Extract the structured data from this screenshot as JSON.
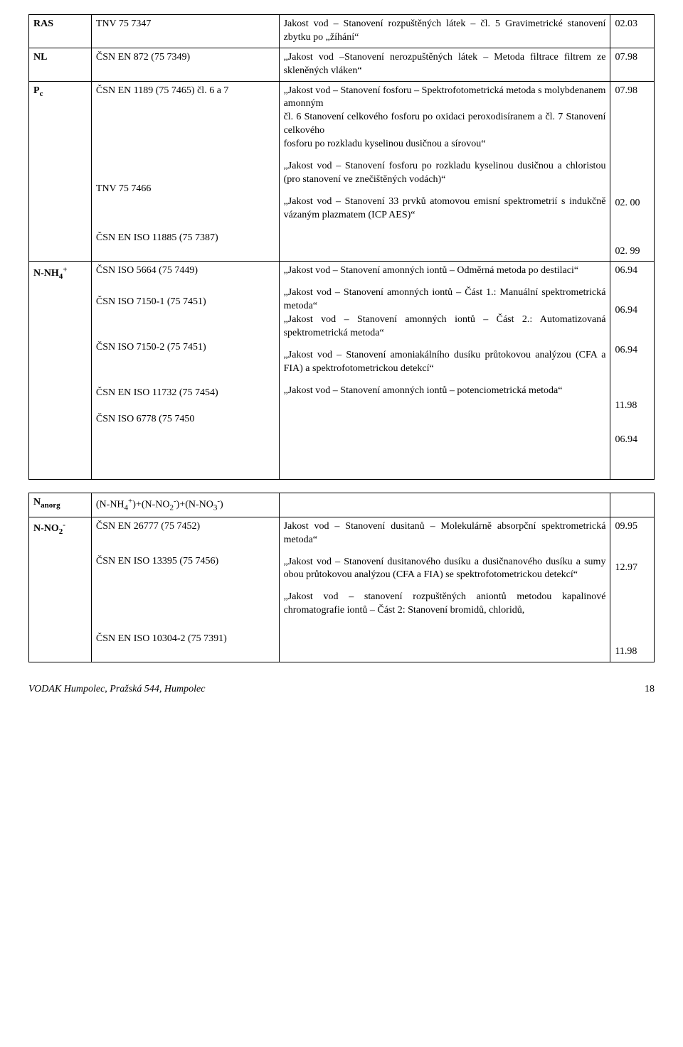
{
  "table1": {
    "rows": [
      {
        "param": "RAS",
        "std": "TNV 75 7347",
        "desc": "Jakost vod – Stanovení rozpuštěných látek – čl. 5 Gravimetrické stanovení zbytku po „žíhání“",
        "date": "02.03"
      },
      {
        "param": "NL",
        "std": "ČSN EN 872 (75 7349)",
        "desc": "„Jakost vod –Stanovení nerozpuštěných látek – Metoda filtrace filtrem ze skleněných vláken“",
        "date": "07.98"
      }
    ],
    "pc": {
      "param_html": "P<span class='sub'>c</span>",
      "std_blocks": [
        "ČSN EN 1189 (75 7465) čl. 6 a 7",
        "TNV 75 7466",
        "ČSN EN ISO 11885 (75 7387)"
      ],
      "desc_blocks": [
        "„Jakost vod – Stanovení fosforu – Spektrofotometrická metoda s molybdenanem amonným\nčl. 6 Stanovení celkového fosforu po oxidaci peroxodisíranem a čl. 7 Stanovení celkového\nfosforu po rozkladu kyselinou dusičnou a sírovou“",
        "„Jakost vod – Stanovení fosforu po rozkladu kyselinou dusičnou a chloristou (pro stanovení ve znečištěných vodách)“",
        " „Jakost vod – Stanovení 33 prvků atomovou emisní spektrometrií s indukčně vázaným plazmatem (ICP AES)“"
      ],
      "dates": [
        "07.98",
        "02. 00",
        "02. 99"
      ]
    },
    "nnh4": {
      "param_html": "N-NH<span class='sub'>4</span><span class='sup'>+</span>",
      "std_blocks": [
        "ČSN ISO 5664 (75 7449)",
        "ČSN ISO 7150-1 (75 7451)",
        "ČSN ISO 7150-2 (75 7451)",
        "ČSN EN ISO 11732 (75 7454)",
        "ČSN ISO 6778 (75 7450"
      ],
      "desc_blocks": [
        "„Jakost vod – Stanovení amonných iontů – Odměrná metoda po destilaci“",
        "„Jakost vod – Stanovení amonných iontů – Část 1.: Manuální spektrometrická metoda“\n„Jakost vod – Stanovení amonných iontů – Část 2.: Automatizovaná spektrometrická metoda“",
        "„Jakost vod – Stanovení amoniakálního dusíku průtokovou analýzou (CFA a FIA) a spektrofotometrickou detekcí“",
        "„Jakost vod – Stanovení amonných iontů – potenciometrická metoda“"
      ],
      "dates": [
        "06.94",
        "06.94",
        "06.94",
        "11.98",
        "06.94"
      ]
    }
  },
  "table2": {
    "nanorg": {
      "param_html": "N<span class='sub'>anorg</span>",
      "std_html": "(N-NH<span class='sub'>4</span><span class='sup'>+</span>)+(N-NO<span class='sub'>2</span><span class='sup'>-</span>)+(N-NO<span class='sub'>3</span><span class='sup'>-</span>)"
    },
    "nno2": {
      "param_html": "N-NO<span class='sub'>2</span><span class='sup'>-</span>",
      "std_blocks": [
        "ČSN EN 26777 (75 7452)",
        "ČSN EN ISO 13395 (75 7456)",
        "ČSN EN ISO 10304-2 (75 7391)"
      ],
      "desc_blocks": [
        "Jakost vod – Stanovení dusitanů – Molekulárně absorpční spektrometrická metoda“",
        "„Jakost vod – Stanovení dusitanového dusíku a dusičnanového dusíku a sumy obou  průtokovou analýzou (CFA a FIA) se spektrofotometrickou detekcí“",
        "„Jakost vod – stanovení rozpuštěných aniontů metodou kapalinové chromatografie iontů – Část 2: Stanovení bromidů, chloridů,"
      ],
      "dates": [
        "09.95",
        "12.97",
        "11.98"
      ]
    }
  },
  "footer": {
    "left": "VODAK Humpolec, Pražská 544, Humpolec",
    "page": "18"
  }
}
